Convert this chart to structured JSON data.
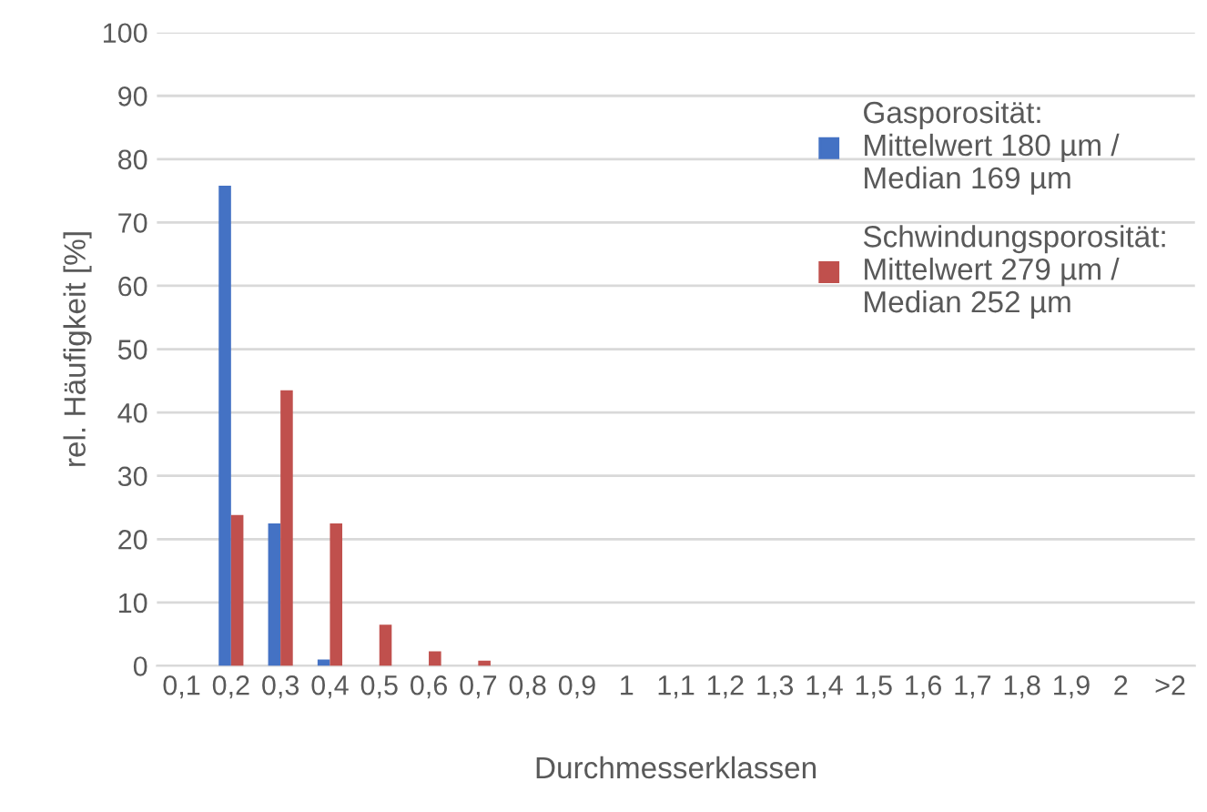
{
  "chart_data": {
    "type": "bar",
    "xlabel": "Durchmesserklassen",
    "ylabel": "rel. Häufigkeit [%]",
    "categories": [
      "0,1",
      "0,2",
      "0,3",
      "0,4",
      "0,5",
      "0,6",
      "0,7",
      "0,8",
      "0,9",
      "1",
      "1,1",
      "1,2",
      "1,3",
      "1,4",
      "1,5",
      "1,6",
      "1,7",
      "1,8",
      "1,9",
      "2",
      ">2"
    ],
    "series": [
      {
        "name": "Gasporosität:\nMittelwert 180 µm /\nMedian 169 µm",
        "color": "#4472c4",
        "values": [
          0,
          75.8,
          22.5,
          1.0,
          0,
          0,
          0,
          0,
          0,
          0,
          0,
          0,
          0,
          0,
          0,
          0,
          0,
          0,
          0,
          0,
          0
        ]
      },
      {
        "name": "Schwindungsporosität:\nMittelwert 279 µm /\nMedian 252 µm",
        "color": "#c0504d",
        "values": [
          0,
          23.8,
          43.5,
          22.5,
          6.5,
          2.3,
          0.8,
          0,
          0,
          0,
          0,
          0,
          0,
          0,
          0,
          0,
          0,
          0,
          0,
          0,
          0
        ]
      }
    ],
    "ylim": [
      0,
      100
    ],
    "yticks": [
      0,
      10,
      20,
      30,
      40,
      50,
      60,
      70,
      80,
      90,
      100
    ],
    "grid": "y",
    "legend": "right"
  }
}
